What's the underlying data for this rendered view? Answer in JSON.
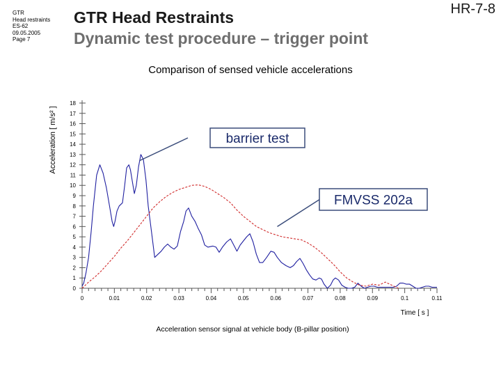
{
  "slide": {
    "meta_lines": [
      "GTR",
      "Head restraints",
      "ES-62",
      "09.05.2005",
      "Page 7"
    ],
    "title": "GTR Head Restraints",
    "subtitle": "Dynamic test procedure – trigger point",
    "page_id": "HR-7-8"
  },
  "colors": {
    "barrier": "#1f1fa0",
    "fmvss": "#d02a2a",
    "axis": "#555555",
    "callout_line": "#3a4c7a"
  },
  "chart_data": {
    "type": "line",
    "title": "Comparison of sensed vehicle accelerations",
    "xlabel": "Time [ s ]",
    "ylabel": "Acceleration [ m/s² ]",
    "caption": "Acceleration sensor signal at vehicle body (B-pillar position)",
    "xlim": [
      0,
      0.11
    ],
    "ylim": [
      0,
      18
    ],
    "x_ticks": [
      0,
      0.01,
      0.02,
      0.03,
      0.04,
      0.05,
      0.06,
      0.07,
      0.08,
      0.09,
      0.1,
      0.11
    ],
    "x_tick_labels": [
      "0",
      "0.01",
      "0.02",
      "0.03",
      "0.04",
      "0.05",
      "0.06",
      "0.07",
      "0.08",
      "0.09",
      "0.1",
      "0.11"
    ],
    "y_ticks": [
      0,
      1,
      2,
      3,
      4,
      5,
      6,
      7,
      8,
      9,
      10,
      11,
      12,
      13,
      14,
      15,
      16,
      17,
      18
    ],
    "y_tick_labels": [
      "0",
      "1",
      "2",
      "3",
      "4",
      "5",
      "6",
      "7",
      "8",
      "9",
      "10",
      "11",
      "12",
      "13",
      "14",
      "15",
      "16",
      "17",
      "18"
    ],
    "series": [
      {
        "name": "barrier test",
        "x": [
          0,
          0.0005,
          0.0012,
          0.002,
          0.0028,
          0.0035,
          0.0045,
          0.0055,
          0.0065,
          0.0075,
          0.0085,
          0.0093,
          0.0098,
          0.0102,
          0.0108,
          0.0115,
          0.0125,
          0.0132,
          0.0138,
          0.0145,
          0.015,
          0.0155,
          0.0162,
          0.0168,
          0.0175,
          0.0182,
          0.019,
          0.0198,
          0.0205,
          0.0215,
          0.0225,
          0.0235,
          0.0245,
          0.0255,
          0.0265,
          0.0275,
          0.0285,
          0.0295,
          0.0305,
          0.0315,
          0.0322,
          0.033,
          0.034,
          0.035,
          0.036,
          0.037,
          0.038,
          0.039,
          0.0405,
          0.0415,
          0.0425,
          0.0435,
          0.0448,
          0.046,
          0.047,
          0.048,
          0.049,
          0.05,
          0.051,
          0.052,
          0.053,
          0.054,
          0.055,
          0.056,
          0.0572,
          0.0585,
          0.0595,
          0.0605,
          0.0618,
          0.0632,
          0.0645,
          0.0655,
          0.0665,
          0.0675,
          0.0685,
          0.0695,
          0.0705,
          0.0715,
          0.0725,
          0.0735,
          0.0742,
          0.075,
          0.076,
          0.077,
          0.0778,
          0.0785,
          0.0795,
          0.0805,
          0.0815,
          0.0825,
          0.0835,
          0.0845,
          0.0855,
          0.0865,
          0.0875,
          0.0885,
          0.0895,
          0.0905,
          0.0915,
          0.0925,
          0.0935,
          0.0945,
          0.0955,
          0.0965,
          0.0975,
          0.0985,
          0.0995,
          0.1005,
          0.1015,
          0.1025,
          0.1035,
          0.1045,
          0.1055,
          0.1065,
          0.1075,
          0.1085,
          0.1095,
          0.11
        ],
        "values": [
          0.2,
          0.5,
          1.5,
          3.0,
          5.5,
          8.0,
          11.0,
          12.0,
          11.2,
          9.8,
          8.0,
          6.5,
          6.0,
          6.5,
          7.5,
          8.0,
          8.3,
          10.0,
          11.7,
          12.0,
          11.5,
          10.5,
          9.2,
          10.0,
          11.8,
          13.0,
          12.5,
          10.5,
          8.0,
          5.5,
          3.0,
          3.3,
          3.6,
          4.0,
          4.3,
          4.0,
          3.8,
          4.1,
          5.5,
          6.5,
          7.5,
          7.8,
          7.0,
          6.5,
          5.8,
          5.2,
          4.2,
          4.0,
          4.1,
          4.0,
          3.5,
          4.0,
          4.5,
          4.8,
          4.2,
          3.6,
          4.2,
          4.6,
          5.0,
          5.3,
          4.5,
          3.3,
          2.5,
          2.5,
          3.0,
          3.6,
          3.5,
          3.0,
          2.5,
          2.2,
          2.0,
          2.2,
          2.6,
          2.9,
          2.4,
          1.8,
          1.3,
          0.9,
          0.8,
          1.0,
          0.9,
          0.4,
          0.0,
          0.3,
          0.8,
          1.0,
          0.8,
          0.3,
          0.1,
          0.0,
          0.0,
          0.1,
          0.5,
          0.2,
          0.0,
          0.1,
          0.2,
          0.2,
          0.1,
          0.1,
          0.1,
          0.1,
          0.1,
          0.1,
          0.2,
          0.5,
          0.5,
          0.4,
          0.4,
          0.2,
          0.0,
          0.0,
          0.1,
          0.2,
          0.2,
          0.1,
          0.1,
          0.1
        ]
      },
      {
        "name": "FMVSS 202a",
        "x": [
          0,
          0.002,
          0.004,
          0.006,
          0.008,
          0.01,
          0.012,
          0.014,
          0.016,
          0.018,
          0.02,
          0.022,
          0.024,
          0.026,
          0.028,
          0.03,
          0.032,
          0.034,
          0.036,
          0.038,
          0.04,
          0.042,
          0.044,
          0.046,
          0.048,
          0.05,
          0.052,
          0.054,
          0.056,
          0.058,
          0.06,
          0.062,
          0.064,
          0.066,
          0.068,
          0.07,
          0.072,
          0.074,
          0.076,
          0.078,
          0.08,
          0.082,
          0.084,
          0.086,
          0.088,
          0.09,
          0.092,
          0.094,
          0.096,
          0.098
        ],
        "values": [
          0.0,
          0.6,
          1.1,
          1.7,
          2.4,
          3.1,
          3.9,
          4.6,
          5.4,
          6.2,
          7.0,
          7.8,
          8.4,
          8.9,
          9.3,
          9.6,
          9.8,
          10.0,
          10.05,
          9.9,
          9.6,
          9.2,
          8.8,
          8.3,
          7.6,
          7.0,
          6.5,
          6.0,
          5.7,
          5.4,
          5.2,
          5.0,
          4.9,
          4.8,
          4.7,
          4.4,
          4.0,
          3.5,
          2.9,
          2.3,
          1.6,
          1.0,
          0.6,
          0.3,
          0.2,
          0.4,
          0.3,
          0.6,
          0.3,
          0.0
        ]
      }
    ],
    "annotations": [
      {
        "text": "barrier test",
        "series": "barrier test",
        "point_x": 0.0178,
        "point_y": 12.4
      },
      {
        "text": "FMVSS 202a",
        "series": "FMVSS 202a",
        "point_x": 0.0605,
        "point_y": 6.0
      }
    ]
  }
}
